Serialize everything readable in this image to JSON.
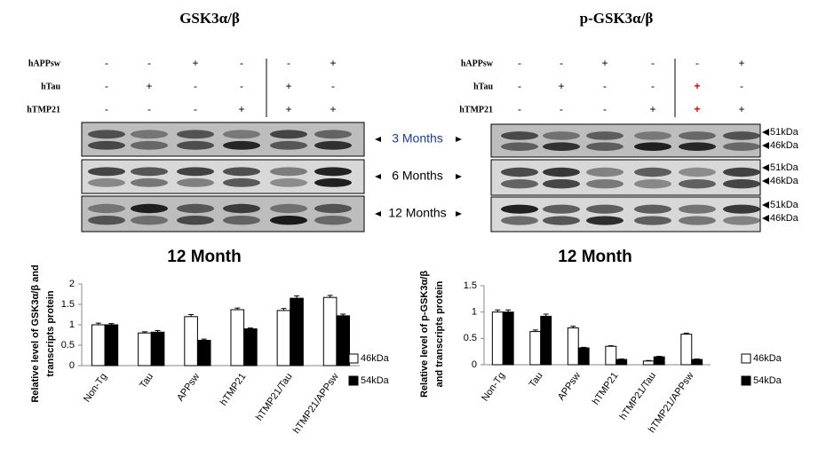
{
  "blots": [
    {
      "title": "GSK3α/β",
      "rows": [
        {
          "label": "hAPPsw",
          "signs": [
            "-",
            "-",
            "+",
            "-",
            "-",
            "+"
          ]
        },
        {
          "label": "hTau",
          "signs": [
            "-",
            "+",
            "-",
            "-",
            "+",
            "-"
          ]
        },
        {
          "label": "hTMP21",
          "signs": [
            "-",
            "-",
            "-",
            "+",
            "+",
            "+"
          ]
        }
      ],
      "months": [
        "3 Months",
        "6 Months",
        "12 Months"
      ]
    },
    {
      "title": "p-GSK3α/β",
      "rows": [
        {
          "label": "hAPPsw",
          "signs": [
            "-",
            "-",
            "+",
            "-",
            "-",
            "+"
          ]
        },
        {
          "label": "hTau",
          "signs": [
            "-",
            "+",
            "-",
            "-",
            "+",
            "-"
          ]
        },
        {
          "label": "hTMP21",
          "signs": [
            "-",
            "-",
            "-",
            "+",
            "+",
            "+"
          ]
        }
      ],
      "kda": [
        [
          "51kDa",
          "46kDa"
        ],
        [
          "51kDa",
          "46kDa"
        ],
        [
          "51kDa",
          "46kDa"
        ]
      ]
    }
  ],
  "chart_data": [
    {
      "type": "bar",
      "title": "12 Month",
      "ylabel": [
        "Relative level of GSK3α/β and",
        "transcripts protein"
      ],
      "categories": [
        "Non-Tg",
        "Tau",
        "APPsw",
        "hTMP21",
        "hTMP21/Tau",
        "hTMP21/APPsw"
      ],
      "series": [
        {
          "name": "46kDa",
          "color": "#ffffff",
          "values": [
            1.0,
            0.8,
            1.2,
            1.37,
            1.35,
            1.67
          ],
          "errors": [
            0.04,
            0.03,
            0.05,
            0.04,
            0.05,
            0.05
          ]
        },
        {
          "name": "54kDa",
          "color": "#000000",
          "values": [
            1.0,
            0.82,
            0.62,
            0.9,
            1.65,
            1.22
          ],
          "errors": [
            0.03,
            0.04,
            0.03,
            0.02,
            0.06,
            0.04
          ]
        }
      ],
      "ylim": [
        0,
        2
      ],
      "yticks": [
        0,
        0.5,
        1,
        1.5,
        2
      ]
    },
    {
      "type": "bar",
      "title": "12 Month",
      "ylabel": [
        "Relative level of p-GSK3α/β",
        "and transcripts protein"
      ],
      "categories": [
        "Non-Tg",
        "Tau",
        "APPsw",
        "hTMP21",
        "hTMP21/Tau",
        "hTMP21/APPsw"
      ],
      "series": [
        {
          "name": "46kDa",
          "color": "#ffffff",
          "values": [
            1.0,
            0.63,
            0.7,
            0.35,
            0.07,
            0.58
          ],
          "errors": [
            0.04,
            0.03,
            0.03,
            0.01,
            0.01,
            0.02
          ]
        },
        {
          "name": "54kDa",
          "color": "#000000",
          "values": [
            1.0,
            0.92,
            0.32,
            0.1,
            0.15,
            0.1
          ],
          "errors": [
            0.04,
            0.04,
            0.01,
            0.01,
            0.01,
            0.01
          ]
        }
      ],
      "ylim": [
        0,
        1.5
      ],
      "yticks": [
        0,
        0.5,
        1,
        1.5
      ]
    }
  ]
}
